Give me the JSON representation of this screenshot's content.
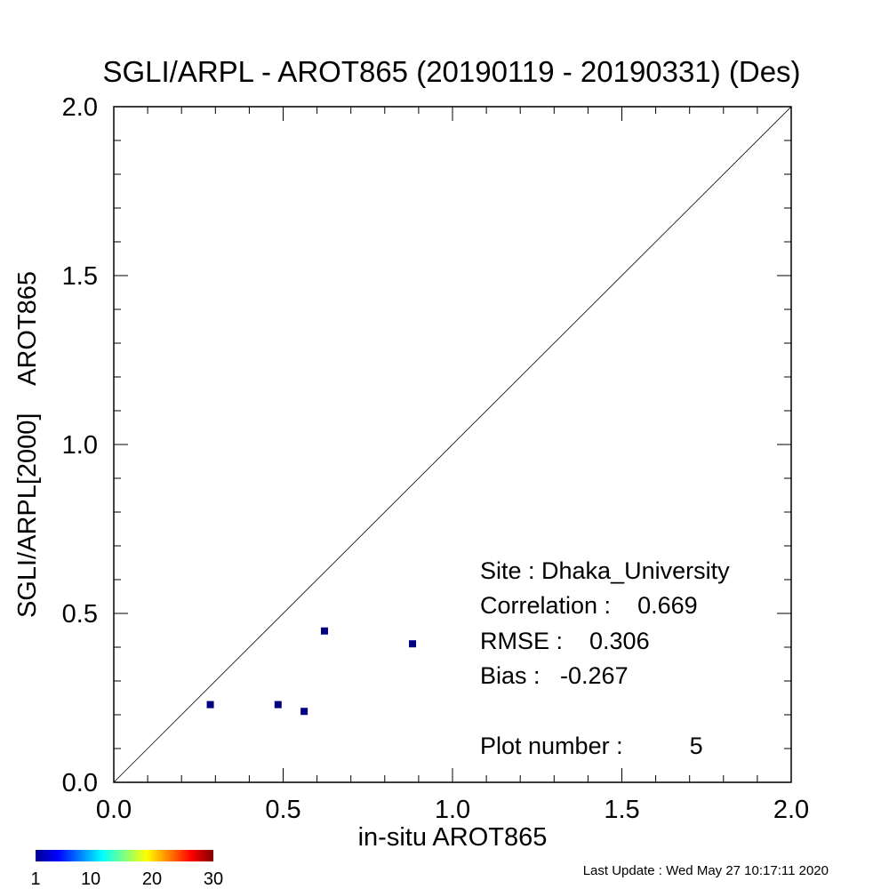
{
  "chart_data": {
    "type": "scatter",
    "title": "SGLI/ARPL - AROT865 (20190119 - 20190331) (Des)",
    "xlabel": "in-situ AROT865",
    "ylabel": "SGLI/ARPL[2000]    AROT865",
    "xlim": [
      0.0,
      2.0
    ],
    "ylim": [
      0.0,
      2.0
    ],
    "xticks": [
      "0.0",
      "0.5",
      "1.0",
      "1.5",
      "2.0"
    ],
    "yticks": [
      "0.0",
      "0.5",
      "1.0",
      "1.5",
      "2.0"
    ],
    "grid": false,
    "reference_line": "1:1",
    "point_color": "#000080",
    "points": [
      {
        "x": 0.285,
        "y": 0.23
      },
      {
        "x": 0.485,
        "y": 0.23
      },
      {
        "x": 0.562,
        "y": 0.21
      },
      {
        "x": 0.622,
        "y": 0.448
      },
      {
        "x": 0.882,
        "y": 0.41
      }
    ],
    "stats": {
      "site": "Site : Dhaka_University",
      "correlation": "Correlation :    0.669",
      "rmse": "RMSE :    0.306",
      "bias": "Bias :   -0.267",
      "plot_number": "Plot number :          5"
    },
    "colorbar": {
      "ticks": [
        "1",
        "10",
        "20",
        "30"
      ],
      "values": [
        1,
        10,
        20,
        30
      ],
      "range": [
        1,
        30
      ],
      "colormap": "jet"
    }
  },
  "footer": {
    "last_update": "Last Update : Wed May 27 10:17:11 2020"
  }
}
